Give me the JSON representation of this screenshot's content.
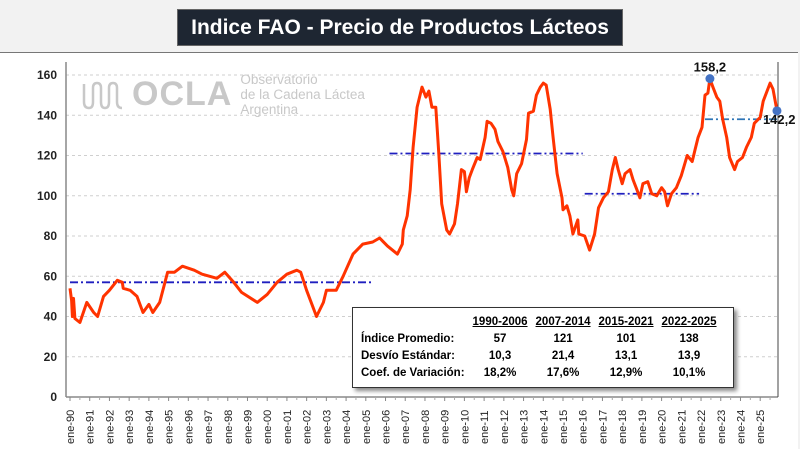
{
  "title": "Indice FAO - Precio de Productos Lácteos",
  "logo": {
    "name": "OCLA",
    "line1": "Observatorio",
    "line2": "de la Cadena Láctea",
    "line3": "Argentina"
  },
  "chart_data": {
    "type": "line",
    "title": "Indice FAO - Precio de Productos Lácteos",
    "xlabel": "",
    "ylabel": "",
    "ylim": [
      0,
      160
    ],
    "yticks": [
      "0",
      "20",
      "40",
      "60",
      "80",
      "100",
      "120",
      "140",
      "160"
    ],
    "xticks": [
      "ene-90",
      "ene-91",
      "ene-92",
      "ene-93",
      "ene-94",
      "ene-95",
      "ene-96",
      "ene-97",
      "ene-98",
      "ene-99",
      "ene-00",
      "ene-01",
      "ene-02",
      "ene-03",
      "ene-04",
      "ene-05",
      "ene-06",
      "ene-07",
      "ene-08",
      "ene-09",
      "ene-10",
      "ene-11",
      "ene-12",
      "ene-13",
      "ene-14",
      "ene-15",
      "ene-16",
      "ene-17",
      "ene-18",
      "ene-19",
      "ene-20",
      "ene-21",
      "ene-22",
      "ene-23",
      "ene-24",
      "ene-25"
    ],
    "grid": true,
    "line_color": "#ff3300",
    "series": [
      {
        "points": [
          [
            1990.0,
            54
          ],
          [
            1990.08,
            48
          ],
          [
            1990.12,
            40
          ],
          [
            1990.18,
            49
          ],
          [
            1990.25,
            39
          ],
          [
            1990.5,
            37
          ],
          [
            1990.85,
            47
          ],
          [
            1991.2,
            42
          ],
          [
            1991.4,
            40
          ],
          [
            1991.7,
            50
          ],
          [
            1992.0,
            53
          ],
          [
            1992.4,
            58
          ],
          [
            1992.65,
            57
          ],
          [
            1992.7,
            54
          ],
          [
            1993.05,
            53
          ],
          [
            1993.4,
            50
          ],
          [
            1993.7,
            42
          ],
          [
            1994.0,
            46
          ],
          [
            1994.2,
            42
          ],
          [
            1994.55,
            47
          ],
          [
            1994.95,
            62
          ],
          [
            1995.3,
            62
          ],
          [
            1995.7,
            65
          ],
          [
            1996.3,
            63
          ],
          [
            1996.7,
            61
          ],
          [
            1997.45,
            59
          ],
          [
            1997.85,
            62
          ],
          [
            1998.3,
            57
          ],
          [
            1998.7,
            52
          ],
          [
            1999.5,
            47
          ],
          [
            2000.0,
            51
          ],
          [
            2000.5,
            57
          ],
          [
            2001.0,
            61
          ],
          [
            2001.5,
            63
          ],
          [
            2001.7,
            62
          ],
          [
            2002.0,
            53
          ],
          [
            2002.5,
            40
          ],
          [
            2002.85,
            47
          ],
          [
            2003.0,
            53
          ],
          [
            2003.5,
            53
          ],
          [
            2003.85,
            60
          ],
          [
            2004.35,
            71
          ],
          [
            2004.85,
            76
          ],
          [
            2005.35,
            77
          ],
          [
            2005.7,
            79
          ],
          [
            2006.1,
            75
          ],
          [
            2006.6,
            71
          ],
          [
            2006.85,
            76
          ],
          [
            2006.9,
            83
          ],
          [
            2007.1,
            90
          ],
          [
            2007.25,
            103
          ],
          [
            2007.4,
            124
          ],
          [
            2007.6,
            144
          ],
          [
            2007.85,
            154
          ],
          [
            2008.05,
            149
          ],
          [
            2008.2,
            152
          ],
          [
            2008.35,
            144
          ],
          [
            2008.55,
            144
          ],
          [
            2008.7,
            121
          ],
          [
            2008.85,
            96
          ],
          [
            2009.1,
            83
          ],
          [
            2009.25,
            81
          ],
          [
            2009.5,
            86
          ],
          [
            2009.65,
            96
          ],
          [
            2009.85,
            113
          ],
          [
            2010.0,
            112
          ],
          [
            2010.1,
            102
          ],
          [
            2010.25,
            109
          ],
          [
            2010.4,
            113
          ],
          [
            2010.65,
            119
          ],
          [
            2010.8,
            118
          ],
          [
            2011.05,
            129
          ],
          [
            2011.15,
            137
          ],
          [
            2011.35,
            136
          ],
          [
            2011.55,
            133
          ],
          [
            2011.7,
            127
          ],
          [
            2011.95,
            122
          ],
          [
            2012.2,
            114
          ],
          [
            2012.4,
            103
          ],
          [
            2012.5,
            100
          ],
          [
            2012.65,
            111
          ],
          [
            2012.9,
            116
          ],
          [
            2013.15,
            128
          ],
          [
            2013.25,
            141
          ],
          [
            2013.5,
            142
          ],
          [
            2013.65,
            150
          ],
          [
            2013.85,
            154
          ],
          [
            2014.0,
            156
          ],
          [
            2014.15,
            155
          ],
          [
            2014.35,
            143
          ],
          [
            2014.5,
            129
          ],
          [
            2014.7,
            111
          ],
          [
            2014.95,
            99
          ],
          [
            2015.0,
            93
          ],
          [
            2015.2,
            95
          ],
          [
            2015.35,
            90
          ],
          [
            2015.5,
            81
          ],
          [
            2015.75,
            88
          ],
          [
            2015.8,
            81
          ],
          [
            2016.1,
            80
          ],
          [
            2016.35,
            73
          ],
          [
            2016.6,
            81
          ],
          [
            2016.8,
            94
          ],
          [
            2017.05,
            99
          ],
          [
            2017.3,
            102
          ],
          [
            2017.5,
            113
          ],
          [
            2017.65,
            119
          ],
          [
            2017.8,
            113
          ],
          [
            2018.0,
            106
          ],
          [
            2018.15,
            111
          ],
          [
            2018.4,
            113
          ],
          [
            2018.55,
            108
          ],
          [
            2018.75,
            103
          ],
          [
            2018.9,
            99
          ],
          [
            2019.05,
            106
          ],
          [
            2019.3,
            107
          ],
          [
            2019.5,
            101
          ],
          [
            2019.75,
            100
          ],
          [
            2020.0,
            104
          ],
          [
            2020.15,
            102
          ],
          [
            2020.3,
            95
          ],
          [
            2020.5,
            101
          ],
          [
            2020.75,
            104
          ],
          [
            2021.0,
            110
          ],
          [
            2021.3,
            120
          ],
          [
            2021.55,
            117
          ],
          [
            2021.7,
            123
          ],
          [
            2021.85,
            129
          ],
          [
            2022.05,
            134
          ],
          [
            2022.2,
            150
          ],
          [
            2022.35,
            151
          ],
          [
            2022.45,
            158.2
          ],
          [
            2022.6,
            154
          ],
          [
            2022.8,
            149
          ],
          [
            2022.95,
            147
          ],
          [
            2023.1,
            138
          ],
          [
            2023.3,
            129
          ],
          [
            2023.45,
            119
          ],
          [
            2023.7,
            113
          ],
          [
            2023.85,
            117
          ],
          [
            2024.1,
            119
          ],
          [
            2024.3,
            124
          ],
          [
            2024.55,
            129
          ],
          [
            2024.7,
            136
          ],
          [
            2025.0,
            139
          ],
          [
            2025.15,
            147
          ],
          [
            2025.5,
            156
          ],
          [
            2025.65,
            153
          ],
          [
            2025.85,
            142.2
          ]
        ]
      }
    ],
    "annotations": [
      {
        "label": "158,2",
        "x": 2022.45,
        "y": 158.2
      },
      {
        "label": "142,2",
        "x": 2025.85,
        "y": 142.2
      }
    ],
    "average_lines": [
      {
        "period": "1990-2006",
        "value": 57,
        "from": 1990.0,
        "to": 2005.3,
        "color": "#1f1fbf"
      },
      {
        "period": "2007-2014",
        "value": 121,
        "from": 2006.2,
        "to": 2016.0,
        "color": "#1f1fbf"
      },
      {
        "period": "2015-2021",
        "value": 101,
        "from": 2016.1,
        "to": 2021.9,
        "color": "#1f1fbf"
      },
      {
        "period": "2022-2025",
        "value": 138,
        "from": 2022.2,
        "to": 2025.9,
        "color": "#2e75b6"
      }
    ]
  },
  "stats": {
    "headers": [
      "1990-2006",
      "2007-2014",
      "2015-2021",
      "2022-2025"
    ],
    "rows": [
      {
        "label": "Índice Promedio:",
        "values": [
          "57",
          "121",
          "101",
          "138"
        ]
      },
      {
        "label": "Desvío Estándar:",
        "values": [
          "10,3",
          "21,4",
          "13,1",
          "13,9"
        ]
      },
      {
        "label": "Coef. de Variación:",
        "values": [
          "18,2%",
          "17,6%",
          "12,9%",
          "10,1%"
        ]
      }
    ]
  }
}
